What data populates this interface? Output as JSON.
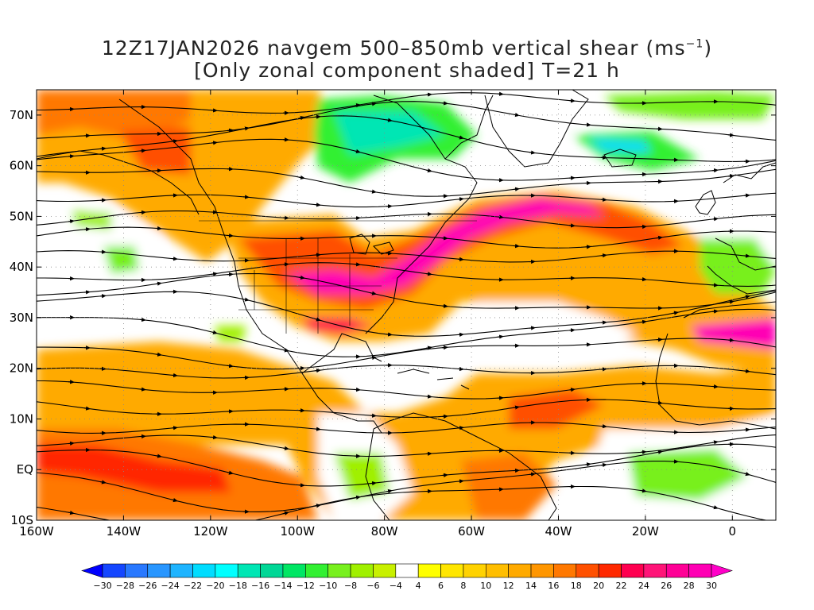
{
  "title": {
    "line1_prefix": "12Z17JAN2026 navgem 500–850mb vertical shear (ms",
    "line1_exponent": "−1",
    "line1_suffix": ")",
    "line2": "[Only zonal component shaded] T=21 h"
  },
  "map": {
    "lon_range": [
      -160,
      10
    ],
    "lat_range": [
      -10,
      75
    ],
    "lat_ticks": [
      {
        "value": 70,
        "label": "70N"
      },
      {
        "value": 60,
        "label": "60N"
      },
      {
        "value": 50,
        "label": "50N"
      },
      {
        "value": 40,
        "label": "40N"
      },
      {
        "value": 30,
        "label": "30N"
      },
      {
        "value": 20,
        "label": "20N"
      },
      {
        "value": 10,
        "label": "10N"
      },
      {
        "value": 0,
        "label": "EQ"
      },
      {
        "value": -10,
        "label": "10S"
      }
    ],
    "lon_ticks": [
      {
        "value": -160,
        "label": "160W"
      },
      {
        "value": -140,
        "label": "140W"
      },
      {
        "value": -120,
        "label": "120W"
      },
      {
        "value": -100,
        "label": "100W"
      },
      {
        "value": -80,
        "label": "80W"
      },
      {
        "value": -60,
        "label": "60W"
      },
      {
        "value": -40,
        "label": "40W"
      },
      {
        "value": -20,
        "label": "20W"
      },
      {
        "value": 0,
        "label": "0"
      }
    ],
    "grid": "dotted",
    "field": "zonal vertical shear",
    "streamlines": true
  },
  "colorbar": {
    "levels": [
      -30,
      -28,
      -26,
      -24,
      -22,
      -20,
      -18,
      -16,
      -14,
      -12,
      -10,
      -8,
      -6,
      -4,
      4,
      6,
      8,
      10,
      12,
      14,
      16,
      18,
      20,
      22,
      24,
      26,
      28,
      30
    ],
    "labels": [
      "−30",
      "−28",
      "−26",
      "−24",
      "−22",
      "−20",
      "−18",
      "−16",
      "−14",
      "−12",
      "−10",
      "−8",
      "−6",
      "−4",
      "4",
      "6",
      "8",
      "10",
      "12",
      "14",
      "16",
      "18",
      "20",
      "22",
      "24",
      "26",
      "28",
      "30"
    ],
    "colors": [
      "#0000ff",
      "#1446ff",
      "#2878ff",
      "#2896ff",
      "#1eb4ff",
      "#00dcff",
      "#00ffff",
      "#00e6b4",
      "#00d796",
      "#00e664",
      "#32f032",
      "#78f01e",
      "#a0f000",
      "#c8f000",
      "#ffffff",
      "#ffff00",
      "#ffe600",
      "#ffd200",
      "#ffbe00",
      "#ffaa00",
      "#ff9600",
      "#ff7800",
      "#ff5000",
      "#ff2800",
      "#ff0050",
      "#ff1478",
      "#ff0096",
      "#ff00b4",
      "#ff00c8"
    ]
  }
}
